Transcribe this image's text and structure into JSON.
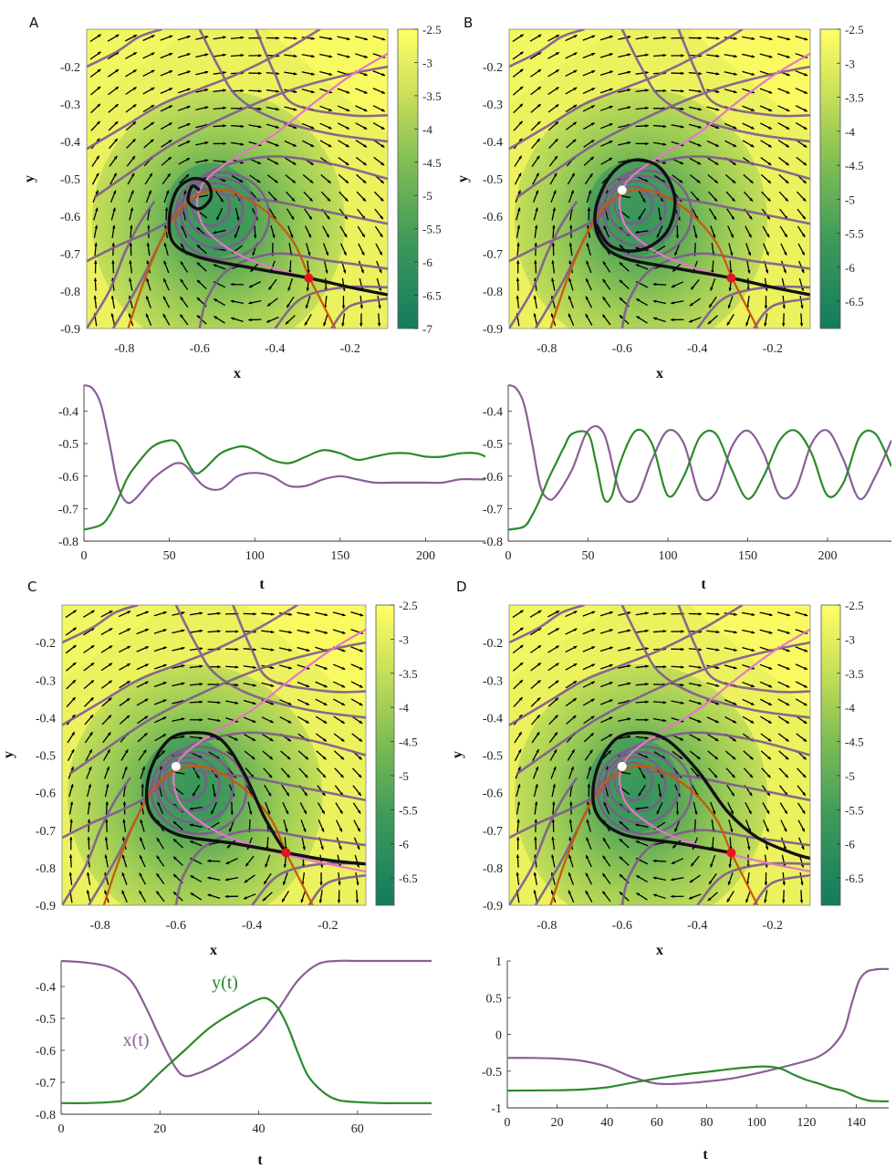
{
  "colors": {
    "flowline": "#7f5a90",
    "pink": "#e676c8",
    "orange": "#c9580a",
    "black": "#111111",
    "xt": "#8b5e98",
    "yt": "#2b8a2b",
    "cmap_low": "#137c5e",
    "cmap_mid": "#7fbe54",
    "cmap_high": "#ffff66"
  },
  "chart_data": [
    {
      "type": "phase_portrait",
      "panel_label": "A",
      "xlabel": "x",
      "ylabel": "y",
      "xlim": [
        -0.9,
        -0.1
      ],
      "ylim": [
        -0.9,
        -0.1
      ],
      "xticks": [
        "-0.8",
        "-0.6",
        "-0.4",
        "-0.2"
      ],
      "yticks": [
        "-0.2",
        "-0.3",
        "-0.4",
        "-0.5",
        "-0.6",
        "-0.7",
        "-0.8",
        "-0.9"
      ],
      "colorbar": {
        "ticks": [
          "-2.5",
          "-3",
          "-3.5",
          "-4",
          "-4.5",
          "-5",
          "-5.5",
          "-6",
          "-6.5",
          "-7"
        ],
        "range": [
          -7,
          -2.5
        ]
      },
      "behavior": "stable_spiral",
      "saddle_point": [
        -0.31,
        -0.765
      ],
      "focus_point": [
        -0.6,
        -0.535
      ],
      "focus_marker": "none"
    },
    {
      "type": "phase_portrait",
      "panel_label": "B",
      "xlabel": "x",
      "ylabel": "y",
      "xlim": [
        -0.9,
        -0.1
      ],
      "ylim": [
        -0.9,
        -0.1
      ],
      "xticks": [
        "-0.8",
        "-0.6",
        "-0.4",
        "-0.2"
      ],
      "yticks": [
        "-0.2",
        "-0.3",
        "-0.4",
        "-0.5",
        "-0.6",
        "-0.7",
        "-0.8",
        "-0.9"
      ],
      "colorbar": {
        "ticks": [
          "-2.5",
          "-3",
          "-3.5",
          "-4",
          "-4.5",
          "-5",
          "-5.5",
          "-6",
          "-6.5"
        ],
        "range": [
          -6.9,
          -2.5
        ]
      },
      "behavior": "limit_cycle",
      "saddle_point": [
        -0.31,
        -0.765
      ],
      "focus_point": [
        -0.6,
        -0.53
      ],
      "focus_marker": "white"
    },
    {
      "type": "phase_portrait",
      "panel_label": "C",
      "xlabel": "x",
      "ylabel": "y",
      "xlim": [
        -0.9,
        -0.1
      ],
      "ylim": [
        -0.9,
        -0.1
      ],
      "xticks": [
        "-0.8",
        "-0.6",
        "-0.4",
        "-0.2"
      ],
      "yticks": [
        "-0.2",
        "-0.3",
        "-0.4",
        "-0.5",
        "-0.6",
        "-0.7",
        "-0.8",
        "-0.9"
      ],
      "colorbar": {
        "ticks": [
          "-2.5",
          "-3",
          "-3.5",
          "-4",
          "-4.5",
          "-5",
          "-5.5",
          "-6",
          "-6.5"
        ],
        "range": [
          -6.9,
          -2.5
        ]
      },
      "behavior": "homoclinic",
      "saddle_point": [
        -0.31,
        -0.76
      ],
      "focus_point": [
        -0.6,
        -0.53
      ],
      "focus_marker": "white"
    },
    {
      "type": "phase_portrait",
      "panel_label": "D",
      "xlabel": "x",
      "ylabel": "y",
      "xlim": [
        -0.9,
        -0.1
      ],
      "ylim": [
        -0.9,
        -0.1
      ],
      "xticks": [
        "-0.8",
        "-0.6",
        "-0.4",
        "-0.2"
      ],
      "yticks": [
        "-0.2",
        "-0.3",
        "-0.4",
        "-0.5",
        "-0.6",
        "-0.7",
        "-0.8",
        "-0.9"
      ],
      "colorbar": {
        "ticks": [
          "-2.5",
          "-3",
          "-3.5",
          "-4",
          "-4.5",
          "-5",
          "-5.5",
          "-6",
          "-6.5"
        ],
        "range": [
          -6.9,
          -2.5
        ]
      },
      "behavior": "escape",
      "saddle_point": [
        -0.31,
        -0.76
      ],
      "focus_point": [
        -0.6,
        -0.53
      ],
      "focus_marker": "white"
    },
    {
      "type": "line",
      "panel": "A",
      "xlabel": "t",
      "xlim": [
        0,
        235
      ],
      "ylim": [
        -0.8,
        -0.32
      ],
      "xticks": [
        "0",
        "50",
        "100",
        "150",
        "200"
      ],
      "yticks": [
        "-0.4",
        "-0.5",
        "-0.6",
        "-0.7",
        "-0.8"
      ],
      "series": [
        {
          "name": "x(t)",
          "x": [
            0,
            5,
            10,
            15,
            20,
            25,
            30,
            40,
            50,
            55,
            60,
            70,
            80,
            90,
            100,
            110,
            120,
            130,
            140,
            150,
            160,
            170,
            180,
            190,
            200,
            210,
            220,
            230,
            235
          ],
          "values": [
            -0.32,
            -0.33,
            -0.38,
            -0.5,
            -0.63,
            -0.68,
            -0.67,
            -0.61,
            -0.57,
            -0.56,
            -0.57,
            -0.63,
            -0.64,
            -0.6,
            -0.59,
            -0.6,
            -0.63,
            -0.63,
            -0.61,
            -0.6,
            -0.61,
            -0.62,
            -0.62,
            -0.62,
            -0.62,
            -0.62,
            -0.61,
            -0.61,
            -0.61
          ]
        },
        {
          "name": "y(t)",
          "x": [
            0,
            10,
            15,
            20,
            25,
            30,
            40,
            50,
            55,
            60,
            65,
            70,
            80,
            90,
            95,
            100,
            110,
            120,
            130,
            140,
            150,
            160,
            170,
            180,
            190,
            200,
            210,
            220,
            230,
            235
          ],
          "values": [
            -0.765,
            -0.75,
            -0.72,
            -0.67,
            -0.61,
            -0.57,
            -0.51,
            -0.49,
            -0.5,
            -0.55,
            -0.59,
            -0.58,
            -0.53,
            -0.51,
            -0.51,
            -0.52,
            -0.55,
            -0.56,
            -0.54,
            -0.52,
            -0.53,
            -0.55,
            -0.54,
            -0.53,
            -0.53,
            -0.54,
            -0.54,
            -0.53,
            -0.53,
            -0.54
          ]
        }
      ]
    },
    {
      "type": "line",
      "panel": "B",
      "xlabel": "t",
      "xlim": [
        0,
        240
      ],
      "ylim": [
        -0.8,
        -0.32
      ],
      "xticks": [
        "0",
        "50",
        "100",
        "150",
        "200"
      ],
      "yticks": [
        "-0.4",
        "-0.5",
        "-0.6",
        "-0.7",
        "-0.8"
      ],
      "series": [
        {
          "name": "x(t)",
          "x": [
            0,
            5,
            10,
            15,
            20,
            25,
            30,
            40,
            50,
            60,
            70,
            80,
            90,
            100,
            110,
            120,
            130,
            140,
            150,
            160,
            170,
            180,
            190,
            200,
            210,
            220,
            230,
            240
          ],
          "values": [
            -0.32,
            -0.33,
            -0.38,
            -0.5,
            -0.63,
            -0.67,
            -0.66,
            -0.58,
            -0.46,
            -0.47,
            -0.65,
            -0.67,
            -0.55,
            -0.46,
            -0.5,
            -0.66,
            -0.65,
            -0.51,
            -0.46,
            -0.53,
            -0.66,
            -0.64,
            -0.5,
            -0.46,
            -0.55,
            -0.67,
            -0.6,
            -0.49
          ]
        },
        {
          "name": "y(t)",
          "x": [
            0,
            10,
            15,
            20,
            25,
            30,
            35,
            40,
            50,
            55,
            60,
            65,
            70,
            80,
            90,
            100,
            110,
            120,
            130,
            140,
            150,
            160,
            170,
            180,
            190,
            200,
            210,
            220,
            230,
            240
          ],
          "values": [
            -0.765,
            -0.755,
            -0.72,
            -0.67,
            -0.61,
            -0.56,
            -0.51,
            -0.47,
            -0.47,
            -0.56,
            -0.67,
            -0.66,
            -0.56,
            -0.46,
            -0.5,
            -0.66,
            -0.6,
            -0.48,
            -0.47,
            -0.58,
            -0.67,
            -0.6,
            -0.49,
            -0.46,
            -0.53,
            -0.66,
            -0.62,
            -0.48,
            -0.47,
            -0.57
          ]
        }
      ]
    },
    {
      "type": "line",
      "panel": "C",
      "xlabel": "t",
      "xlim": [
        0,
        75
      ],
      "ylim": [
        -0.8,
        -0.32
      ],
      "xticks": [
        "0",
        "20",
        "40",
        "60"
      ],
      "yticks": [
        "-0.4",
        "-0.5",
        "-0.6",
        "-0.7",
        "-0.8"
      ],
      "annotations": [
        {
          "text": "x(t)",
          "series": "x(t)",
          "at": [
            12.5,
            -0.585
          ]
        },
        {
          "text": "y(t)",
          "series": "y(t)",
          "at": [
            30.5,
            -0.405
          ]
        }
      ],
      "series": [
        {
          "name": "x(t)",
          "x": [
            0,
            5,
            10,
            14,
            17,
            20,
            23,
            25,
            28,
            32,
            36,
            40,
            44,
            48,
            52,
            56,
            60,
            65,
            70,
            75
          ],
          "values": [
            -0.32,
            -0.325,
            -0.34,
            -0.38,
            -0.46,
            -0.56,
            -0.65,
            -0.68,
            -0.67,
            -0.64,
            -0.6,
            -0.55,
            -0.47,
            -0.38,
            -0.33,
            -0.32,
            -0.32,
            -0.32,
            -0.32,
            -0.32
          ]
        },
        {
          "name": "y(t)",
          "x": [
            0,
            5,
            10,
            13,
            16,
            20,
            25,
            30,
            35,
            40,
            42,
            44,
            46,
            48,
            50,
            53,
            56,
            60,
            65,
            70,
            75
          ],
          "values": [
            -0.765,
            -0.765,
            -0.762,
            -0.755,
            -0.73,
            -0.67,
            -0.6,
            -0.53,
            -0.48,
            -0.44,
            -0.44,
            -0.47,
            -0.53,
            -0.61,
            -0.68,
            -0.73,
            -0.755,
            -0.762,
            -0.765,
            -0.765,
            -0.765
          ]
        }
      ]
    },
    {
      "type": "line",
      "panel": "D",
      "xlabel": "t",
      "xlim": [
        0,
        153
      ],
      "ylim": [
        -1,
        1
      ],
      "xticks": [
        "0",
        "20",
        "40",
        "60",
        "80",
        "100",
        "120",
        "140"
      ],
      "yticks": [
        "1",
        "0.5",
        "0",
        "-0.5",
        "-1"
      ],
      "series": [
        {
          "name": "x(t)",
          "x": [
            0,
            10,
            20,
            30,
            40,
            50,
            60,
            70,
            80,
            90,
            100,
            110,
            120,
            125,
            130,
            135,
            138,
            141,
            144,
            147,
            150,
            153
          ],
          "values": [
            -0.32,
            -0.32,
            -0.33,
            -0.36,
            -0.44,
            -0.58,
            -0.67,
            -0.67,
            -0.64,
            -0.6,
            -0.53,
            -0.45,
            -0.36,
            -0.3,
            -0.18,
            0.05,
            0.4,
            0.72,
            0.85,
            0.88,
            0.89,
            0.89
          ]
        },
        {
          "name": "y(t)",
          "x": [
            0,
            20,
            30,
            40,
            50,
            60,
            70,
            80,
            90,
            100,
            105,
            110,
            115,
            120,
            125,
            130,
            135,
            140,
            145,
            150,
            153
          ],
          "values": [
            -0.765,
            -0.76,
            -0.75,
            -0.72,
            -0.66,
            -0.6,
            -0.55,
            -0.51,
            -0.47,
            -0.44,
            -0.44,
            -0.47,
            -0.55,
            -0.62,
            -0.67,
            -0.73,
            -0.77,
            -0.85,
            -0.9,
            -0.91,
            -0.91
          ]
        }
      ]
    }
  ]
}
